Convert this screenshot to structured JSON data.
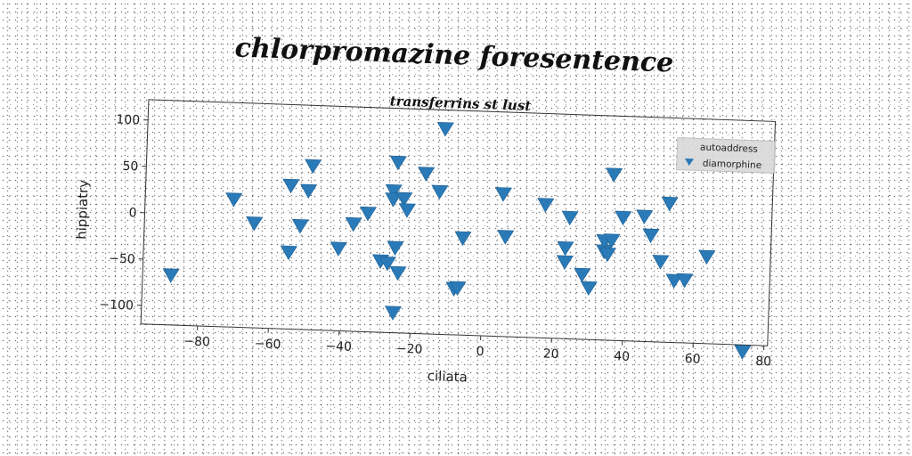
{
  "chart_data": {
    "type": "scatter",
    "title": "chlorpromazine foresentence",
    "subtitle": "transferrins st lust",
    "xlabel": "ciliata",
    "ylabel": "hippiatry",
    "xlim": [
      -96,
      81
    ],
    "ylim": [
      -120,
      122
    ],
    "xticks": [
      -80,
      -60,
      -40,
      -20,
      0,
      20,
      40,
      60,
      80
    ],
    "yticks": [
      100,
      50,
      0,
      -50,
      -100
    ],
    "grid": false,
    "legend": {
      "placement": "top-right",
      "title": "autoaddress",
      "entries": [
        "diamorphine"
      ]
    },
    "marker": "triangle-down",
    "color": "#2a7ab8",
    "series": [
      {
        "name": "diamorphine",
        "points": [
          [
            -88,
            -66
          ],
          [
            -71,
            18
          ],
          [
            -65,
            -7
          ],
          [
            -55,
            -37
          ],
          [
            -55,
            35
          ],
          [
            -52,
            -8
          ],
          [
            -50,
            30
          ],
          [
            -49,
            57
          ],
          [
            -41,
            -31
          ],
          [
            -37,
            -4
          ],
          [
            -33,
            8
          ],
          [
            -29,
            -43
          ],
          [
            -27,
            -45
          ],
          [
            -26,
            33
          ],
          [
            -26,
            24
          ],
          [
            -25,
            -28
          ],
          [
            -25,
            64
          ],
          [
            -25,
            -98
          ],
          [
            -24,
            -55
          ],
          [
            -23,
            25
          ],
          [
            -22,
            13
          ],
          [
            -17,
            53
          ],
          [
            -13,
            34
          ],
          [
            -12,
            102
          ],
          [
            -8,
            -70
          ],
          [
            -7,
            -69
          ],
          [
            -6,
            -15
          ],
          [
            5,
            34
          ],
          [
            6,
            -12
          ],
          [
            17,
            24
          ],
          [
            23,
            -22
          ],
          [
            23,
            -37
          ],
          [
            24,
            11
          ],
          [
            28,
            -50
          ],
          [
            30,
            -64
          ],
          [
            34,
            -24
          ],
          [
            34,
            -13
          ],
          [
            35,
            -27
          ],
          [
            36,
            -12
          ],
          [
            36,
            59
          ],
          [
            39,
            13
          ],
          [
            45,
            15
          ],
          [
            47,
            -5
          ],
          [
            50,
            -33
          ],
          [
            52,
            30
          ],
          [
            54,
            -53
          ],
          [
            57,
            -52
          ],
          [
            63,
            -26
          ],
          [
            74,
            -127
          ]
        ]
      }
    ]
  }
}
